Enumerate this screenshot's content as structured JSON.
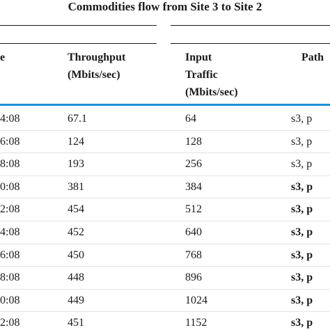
{
  "caption": "Commodities flow from Site 3 to Site 2",
  "headers": {
    "time": "e",
    "throughput": [
      "Throughput",
      "(Mbits/sec)"
    ],
    "input": [
      "Input",
      "Traffic",
      "(Mbits/sec)"
    ],
    "path": "Path"
  },
  "rows": [
    {
      "time": "4:08",
      "throughput": "67.1",
      "input": "64",
      "path": "s3, p",
      "bold": false
    },
    {
      "time": "6:08",
      "throughput": "124",
      "input": "128",
      "path": "s3, p",
      "bold": false
    },
    {
      "time": "8:08",
      "throughput": "193",
      "input": "256",
      "path": "s3, p",
      "bold": false
    },
    {
      "time": "0:08",
      "throughput": "381",
      "input": "384",
      "path": "s3, p",
      "bold": true
    },
    {
      "time": "2:08",
      "throughput": "454",
      "input": "512",
      "path": "s3, p",
      "bold": true
    },
    {
      "time": "4:08",
      "throughput": "452",
      "input": "640",
      "path": "s3, p",
      "bold": true
    },
    {
      "time": "6:08",
      "throughput": "450",
      "input": "768",
      "path": "s3, p",
      "bold": true
    },
    {
      "time": "8:08",
      "throughput": "448",
      "input": "896",
      "path": "s3, p",
      "bold": true
    },
    {
      "time": "0:08",
      "throughput": "449",
      "input": "1024",
      "path": "s3, p",
      "bold": true
    },
    {
      "time": "2:08",
      "throughput": "451",
      "input": "1152",
      "path": "s3, p",
      "bold": true
    }
  ]
}
